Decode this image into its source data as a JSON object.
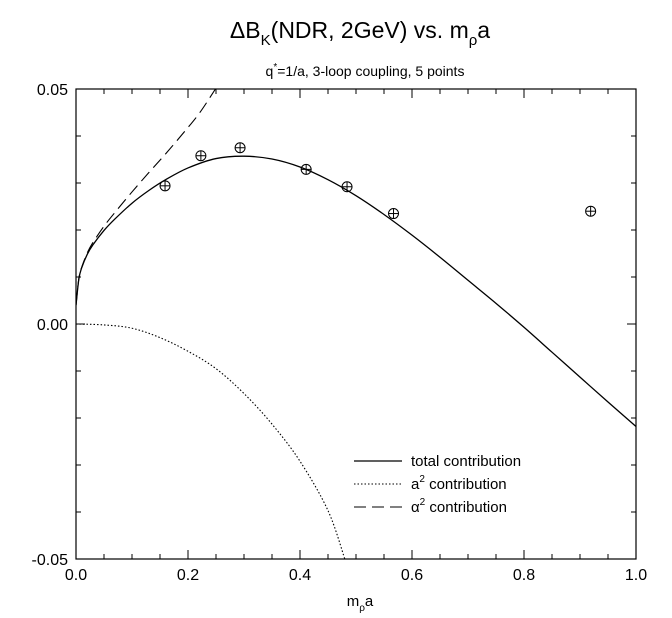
{
  "chart_data": {
    "type": "scatter",
    "title": {
      "prefix": "ΔB",
      "sub": "K",
      "middle": "(NDR, 2GeV) vs. m",
      "sub2": "ρ",
      "suffix": "a"
    },
    "subtitle": {
      "prefix": "q",
      "sup": "*",
      "suffix": "=1/a, 3-loop coupling, 5 points"
    },
    "xlabel": {
      "prefix": "m",
      "sub": "ρ",
      "suffix": "a"
    },
    "ylabel": "",
    "xlim": [
      0.0,
      1.0
    ],
    "ylim": [
      -0.05,
      0.05
    ],
    "x_ticks": [
      0.0,
      0.2,
      0.4,
      0.6,
      0.8,
      1.0
    ],
    "x_tick_labels": [
      "0.0",
      "0.2",
      "0.4",
      "0.6",
      "0.8",
      "1.0"
    ],
    "y_ticks": [
      -0.05,
      0.0,
      0.05
    ],
    "y_tick_labels": [
      "-0.05",
      "0.00",
      "0.05"
    ],
    "grid": false,
    "legend_position": "bottom-right",
    "points": {
      "marker": "circle-plus",
      "x": [
        0.159,
        0.223,
        0.293,
        0.411,
        0.484,
        0.567,
        0.919
      ],
      "y": [
        0.0294,
        0.0358,
        0.0375,
        0.0329,
        0.0292,
        0.0235,
        0.024
      ]
    },
    "series": [
      {
        "name": "total contribution",
        "style": "solid",
        "x": [
          0.0,
          0.005,
          0.01,
          0.02,
          0.03,
          0.05,
          0.07,
          0.1,
          0.13,
          0.16,
          0.2,
          0.25,
          0.3,
          0.35,
          0.4,
          0.45,
          0.5,
          0.55,
          0.6,
          0.65,
          0.7,
          0.75,
          0.8,
          0.85,
          0.9,
          0.95,
          1.0
        ],
        "y": [
          0.004,
          0.0095,
          0.0119,
          0.0148,
          0.0168,
          0.0199,
          0.0224,
          0.0257,
          0.0284,
          0.0307,
          0.0332,
          0.0352,
          0.0357,
          0.0351,
          0.0334,
          0.0307,
          0.0273,
          0.0233,
          0.0189,
          0.0142,
          0.0093,
          0.0044,
          -0.0007,
          -0.006,
          -0.0113,
          -0.0166,
          -0.0218
        ]
      },
      {
        "name": "a² contribution",
        "legend_label": {
          "prefix": "a",
          "sup": "2",
          "suffix": " contribution"
        },
        "style": "dotted",
        "x": [
          0.0,
          0.05,
          0.1,
          0.15,
          0.2,
          0.25,
          0.3,
          0.35,
          0.4,
          0.45,
          0.48
        ],
        "y": [
          0.0,
          -0.0002,
          -0.0009,
          -0.0029,
          -0.0058,
          -0.0095,
          -0.0148,
          -0.0213,
          -0.0292,
          -0.0397,
          -0.05
        ]
      },
      {
        "name": "α² contribution",
        "legend_label": {
          "prefix": "α",
          "sup": "2",
          "suffix": " contribution"
        },
        "style": "dashed",
        "x": [
          0.0,
          0.005,
          0.01,
          0.02,
          0.03,
          0.05,
          0.07,
          0.1,
          0.13,
          0.16,
          0.19,
          0.22,
          0.249
        ],
        "y": [
          0.004,
          0.0096,
          0.012,
          0.0151,
          0.0173,
          0.0208,
          0.0238,
          0.0281,
          0.0322,
          0.0362,
          0.0404,
          0.0448,
          0.05
        ]
      }
    ]
  }
}
